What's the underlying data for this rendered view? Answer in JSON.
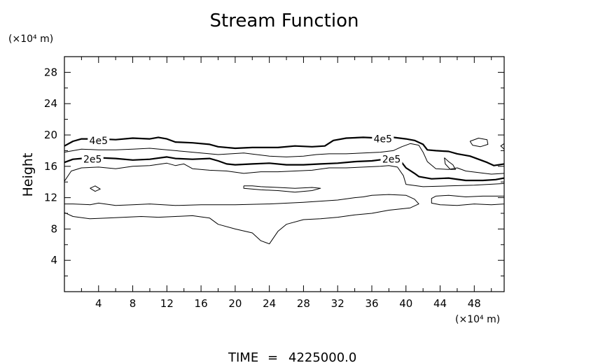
{
  "chart_data": {
    "type": "contour",
    "title": "Stream Function",
    "xlabel": "",
    "ylabel": "Height",
    "x_unit": "(×10⁴ m)",
    "y_unit": "(×10⁴ m)",
    "xlim": [
      0,
      51.5
    ],
    "ylim": [
      0,
      30
    ],
    "xticks": [
      4,
      8,
      12,
      16,
      20,
      24,
      28,
      32,
      36,
      40,
      44,
      48
    ],
    "yticks": [
      4,
      8,
      12,
      16,
      20,
      24,
      28
    ],
    "minor_tick_step": 2,
    "grid": false,
    "contour_labels": [
      "4e5",
      "2e5",
      "4e5",
      "2e5"
    ],
    "contours": [
      {
        "level": "4e5",
        "bold": true,
        "points": [
          [
            0,
            18.6
          ],
          [
            1,
            19.2
          ],
          [
            2,
            19.5
          ],
          [
            4,
            19.5
          ],
          [
            6,
            19.4
          ],
          [
            8,
            19.6
          ],
          [
            10,
            19.5
          ],
          [
            11,
            19.7
          ],
          [
            12,
            19.5
          ],
          [
            13,
            19.1
          ],
          [
            15,
            19.0
          ],
          [
            17,
            18.8
          ],
          [
            18,
            18.5
          ],
          [
            20,
            18.3
          ],
          [
            22,
            18.4
          ],
          [
            25,
            18.4
          ],
          [
            27,
            18.6
          ],
          [
            29,
            18.5
          ],
          [
            30.5,
            18.6
          ],
          [
            31.5,
            19.3
          ],
          [
            33,
            19.6
          ],
          [
            35,
            19.7
          ],
          [
            37,
            19.6
          ],
          [
            38.5,
            19.7
          ],
          [
            40,
            19.5
          ],
          [
            41,
            19.3
          ],
          [
            42,
            18.8
          ],
          [
            42.5,
            18.1
          ],
          [
            43.5,
            18.0
          ],
          [
            45,
            17.9
          ],
          [
            46,
            17.6
          ],
          [
            47.5,
            17.3
          ],
          [
            48.5,
            16.9
          ],
          [
            49.5,
            16.5
          ],
          [
            50.3,
            16.1
          ],
          [
            51.5,
            16.3
          ]
        ]
      },
      {
        "level": "2e5",
        "bold": true,
        "points": [
          [
            0,
            16.5
          ],
          [
            1,
            16.9
          ],
          [
            2,
            17.0
          ],
          [
            4,
            17.1
          ],
          [
            6,
            17.0
          ],
          [
            8,
            16.8
          ],
          [
            10,
            16.9
          ],
          [
            12,
            17.2
          ],
          [
            13,
            17.0
          ],
          [
            15,
            16.9
          ],
          [
            17,
            17.0
          ],
          [
            18,
            16.7
          ],
          [
            19,
            16.3
          ],
          [
            20,
            16.2
          ],
          [
            22,
            16.3
          ],
          [
            24,
            16.4
          ],
          [
            26,
            16.2
          ],
          [
            28,
            16.2
          ],
          [
            30,
            16.3
          ],
          [
            32,
            16.4
          ],
          [
            34,
            16.6
          ],
          [
            36,
            16.7
          ],
          [
            37.5,
            16.9
          ],
          [
            38.5,
            17.0
          ],
          [
            39.5,
            16.5
          ],
          [
            40,
            15.8
          ],
          [
            41,
            15.1
          ],
          [
            41.5,
            14.7
          ],
          [
            43,
            14.4
          ],
          [
            45,
            14.5
          ],
          [
            47,
            14.2
          ],
          [
            49,
            14.2
          ],
          [
            50.5,
            14.3
          ],
          [
            51.5,
            14.5
          ]
        ]
      },
      {
        "level": "",
        "bold": false,
        "points": [
          [
            0,
            17.8
          ],
          [
            2,
            18.2
          ],
          [
            4,
            18.1
          ],
          [
            6,
            18.1
          ],
          [
            8,
            18.2
          ],
          [
            10,
            18.3
          ],
          [
            12,
            18.1
          ],
          [
            14,
            17.9
          ],
          [
            16,
            17.7
          ],
          [
            18,
            17.5
          ],
          [
            19.5,
            17.6
          ],
          [
            21,
            17.7
          ],
          [
            22.5,
            17.5
          ],
          [
            24,
            17.3
          ],
          [
            26,
            17.2
          ],
          [
            28,
            17.3
          ],
          [
            29.5,
            17.5
          ],
          [
            31,
            17.6
          ],
          [
            33,
            17.6
          ],
          [
            35,
            17.7
          ],
          [
            37,
            17.8
          ],
          [
            38.5,
            18.0
          ],
          [
            39.5,
            18.5
          ],
          [
            40.5,
            18.9
          ],
          [
            41.5,
            18.7
          ],
          [
            42,
            17.8
          ],
          [
            42.5,
            16.6
          ],
          [
            43.5,
            15.7
          ],
          [
            45,
            15.6
          ],
          [
            46,
            15.8
          ],
          [
            47,
            15.4
          ],
          [
            48.5,
            15.2
          ],
          [
            50,
            15.0
          ],
          [
            51.5,
            15.1
          ]
        ]
      },
      {
        "level": "",
        "bold": false,
        "points": [
          [
            0,
            14.1
          ],
          [
            0.8,
            15.4
          ],
          [
            2,
            15.8
          ],
          [
            4,
            15.9
          ],
          [
            6,
            15.7
          ],
          [
            8,
            16.0
          ],
          [
            10,
            16.1
          ],
          [
            12,
            16.4
          ],
          [
            13,
            16.1
          ],
          [
            14,
            16.3
          ],
          [
            15,
            15.7
          ],
          [
            17,
            15.5
          ],
          [
            19,
            15.4
          ],
          [
            21,
            15.1
          ],
          [
            23,
            15.3
          ],
          [
            25,
            15.3
          ],
          [
            27,
            15.4
          ],
          [
            29,
            15.5
          ],
          [
            31,
            15.8
          ],
          [
            33,
            15.8
          ],
          [
            35,
            15.9
          ],
          [
            37,
            16.0
          ],
          [
            38,
            16.1
          ],
          [
            39,
            15.9
          ],
          [
            39.7,
            14.8
          ],
          [
            40,
            13.7
          ],
          [
            42,
            13.4
          ],
          [
            45,
            13.5
          ],
          [
            48,
            13.6
          ],
          [
            51.5,
            13.8
          ]
        ]
      },
      {
        "level": "",
        "bold": false,
        "points": [
          [
            0,
            11.2
          ],
          [
            1,
            11.2
          ],
          [
            3,
            11.1
          ],
          [
            4,
            11.3
          ],
          [
            6,
            11.0
          ],
          [
            8,
            11.1
          ],
          [
            10,
            11.2
          ],
          [
            13,
            11.0
          ],
          [
            16,
            11.1
          ],
          [
            20,
            11.1
          ],
          [
            24,
            11.2
          ],
          [
            28,
            11.4
          ],
          [
            32,
            11.7
          ],
          [
            34,
            12.0
          ],
          [
            35,
            12.1
          ],
          [
            36,
            12.3
          ],
          [
            38,
            12.4
          ],
          [
            40,
            12.3
          ],
          [
            41,
            11.8
          ],
          [
            41.5,
            11.2
          ],
          [
            40.5,
            10.7
          ],
          [
            38,
            10.4
          ],
          [
            36,
            10.0
          ],
          [
            34,
            9.8
          ],
          [
            32,
            9.5
          ],
          [
            30,
            9.3
          ],
          [
            28,
            9.2
          ],
          [
            26,
            8.6
          ],
          [
            25,
            7.7
          ],
          [
            24,
            6.1
          ],
          [
            23,
            6.5
          ],
          [
            22,
            7.5
          ],
          [
            20,
            8.0
          ],
          [
            18,
            8.6
          ],
          [
            17,
            9.4
          ],
          [
            15,
            9.7
          ],
          [
            13,
            9.6
          ],
          [
            11,
            9.5
          ],
          [
            9,
            9.6
          ],
          [
            7,
            9.5
          ],
          [
            5,
            9.4
          ],
          [
            3,
            9.3
          ],
          [
            1,
            9.6
          ],
          [
            0,
            10.1
          ]
        ]
      },
      {
        "level": "",
        "bold": false,
        "points": [
          [
            43.5,
            12.2
          ],
          [
            45,
            12.3
          ],
          [
            47,
            12.1
          ],
          [
            49,
            12.2
          ],
          [
            51,
            12.2
          ],
          [
            51.5,
            12.2
          ],
          [
            51.5,
            11.2
          ],
          [
            50,
            11.1
          ],
          [
            48,
            11.2
          ],
          [
            46,
            11.0
          ],
          [
            44,
            11.1
          ],
          [
            43,
            11.3
          ],
          [
            43,
            11.9
          ],
          [
            43.5,
            12.2
          ]
        ]
      },
      {
        "level": "",
        "bold": false,
        "points": [
          [
            3,
            13.2
          ],
          [
            3.6,
            13.5
          ],
          [
            4.2,
            13.1
          ],
          [
            3.6,
            12.8
          ],
          [
            3,
            13.2
          ]
        ]
      },
      {
        "level": "",
        "bold": false,
        "points": [
          [
            21,
            13.5
          ],
          [
            22,
            13.5
          ],
          [
            23,
            13.4
          ],
          [
            25,
            13.3
          ],
          [
            27,
            13.2
          ],
          [
            29,
            13.3
          ],
          [
            30,
            13.2
          ],
          [
            29,
            12.9
          ],
          [
            27,
            12.7
          ],
          [
            25,
            12.9
          ],
          [
            23,
            13.0
          ],
          [
            21,
            13.2
          ],
          [
            21,
            13.5
          ]
        ]
      },
      {
        "level": "",
        "bold": false,
        "points": [
          [
            47.5,
            19.2
          ],
          [
            48.5,
            19.6
          ],
          [
            49.5,
            19.4
          ],
          [
            49.6,
            18.8
          ],
          [
            48.7,
            18.5
          ],
          [
            47.8,
            18.7
          ],
          [
            47.5,
            19.2
          ]
        ]
      },
      {
        "level": "",
        "bold": false,
        "points": [
          [
            44.5,
            17.1
          ],
          [
            45,
            16.6
          ],
          [
            45.5,
            16.2
          ],
          [
            45.8,
            15.6
          ],
          [
            45.2,
            15.6
          ],
          [
            44.6,
            16.3
          ],
          [
            44.5,
            17.1
          ]
        ]
      },
      {
        "level": "",
        "bold": false,
        "points": [
          [
            51.5,
            18.9
          ],
          [
            51.1,
            18.6
          ],
          [
            51.5,
            18.2
          ]
        ]
      }
    ]
  },
  "footer": {
    "time_label": "TIME",
    "time_equals": "=",
    "time_value": "4225000.0"
  }
}
